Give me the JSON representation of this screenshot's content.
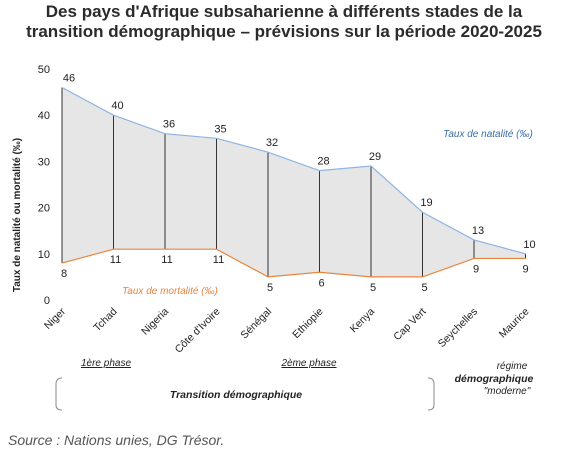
{
  "title_line1": "Des pays d'Afrique subsaharienne à différents stades de la",
  "title_line2": "transition démographique – prévisions sur la période 2020-2025",
  "source": "Source : Nations unies, DG Trésor.",
  "phase_labels": {
    "phase1": "1ère phase",
    "phase2": "2ème phase",
    "transition": "Transition démographique",
    "modern_line1": "régime",
    "modern_line2": "démographique",
    "modern_line3": "\"moderne\""
  },
  "colors": {
    "birth_line": "#8eb4e3",
    "death_line": "#e8853c",
    "fill": "#e6e6e6",
    "connector": "#333333"
  },
  "chart_data": {
    "type": "area",
    "title": "Des pays d'Afrique subsaharienne à différents stades de la transition démographique – prévisions sur la période 2020-2025",
    "xlabel": "",
    "ylabel": "Taux de natalité ou mortalité (‰)",
    "ylim": [
      0,
      50
    ],
    "yticks": [
      0,
      10,
      20,
      30,
      40,
      50
    ],
    "categories": [
      "Niger",
      "Tchad",
      "Nigeria",
      "Côte d'Ivoire",
      "Sénégal",
      "Ethiopie",
      "Kenya",
      "Cap Vert",
      "Seychelles",
      "Maurice"
    ],
    "series": [
      {
        "name": "Taux de natalité (‰)",
        "values": [
          46,
          40,
          36,
          35,
          32,
          28,
          29,
          19,
          13,
          10
        ]
      },
      {
        "name": "Taux de mortalité (‰)",
        "values": [
          8,
          11,
          11,
          11,
          5,
          6,
          5,
          5,
          9,
          9
        ]
      }
    ],
    "grid": false,
    "legend": "inline labels"
  }
}
